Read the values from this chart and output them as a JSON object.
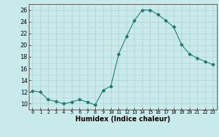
{
  "x": [
    0,
    1,
    2,
    3,
    4,
    5,
    6,
    7,
    8,
    9,
    10,
    11,
    12,
    13,
    14,
    15,
    16,
    17,
    18,
    19,
    20,
    21,
    22,
    23
  ],
  "y": [
    12.2,
    12.0,
    10.7,
    10.4,
    10.0,
    10.3,
    10.7,
    10.3,
    9.8,
    12.3,
    13.0,
    18.5,
    21.5,
    24.2,
    26.0,
    26.0,
    25.2,
    24.2,
    23.1,
    20.1,
    18.5,
    17.8,
    17.2,
    16.7
  ],
  "line_color": "#1a7a6e",
  "marker": "D",
  "marker_size": 2.5,
  "bg_color": "#c8eaea",
  "grid_color": "#b0d0d0",
  "xlabel": "Humidex (Indice chaleur)",
  "ylabel_ticks": [
    10,
    12,
    14,
    16,
    18,
    20,
    22,
    24,
    26
  ],
  "ylim": [
    9.0,
    27.0
  ],
  "xlim": [
    -0.5,
    23.5
  ],
  "xtick_labels": [
    "0",
    "1",
    "2",
    "3",
    "4",
    "5",
    "6",
    "7",
    "8",
    "9",
    "10",
    "11",
    "12",
    "13",
    "14",
    "15",
    "16",
    "17",
    "18",
    "19",
    "20",
    "21",
    "22",
    "23"
  ]
}
